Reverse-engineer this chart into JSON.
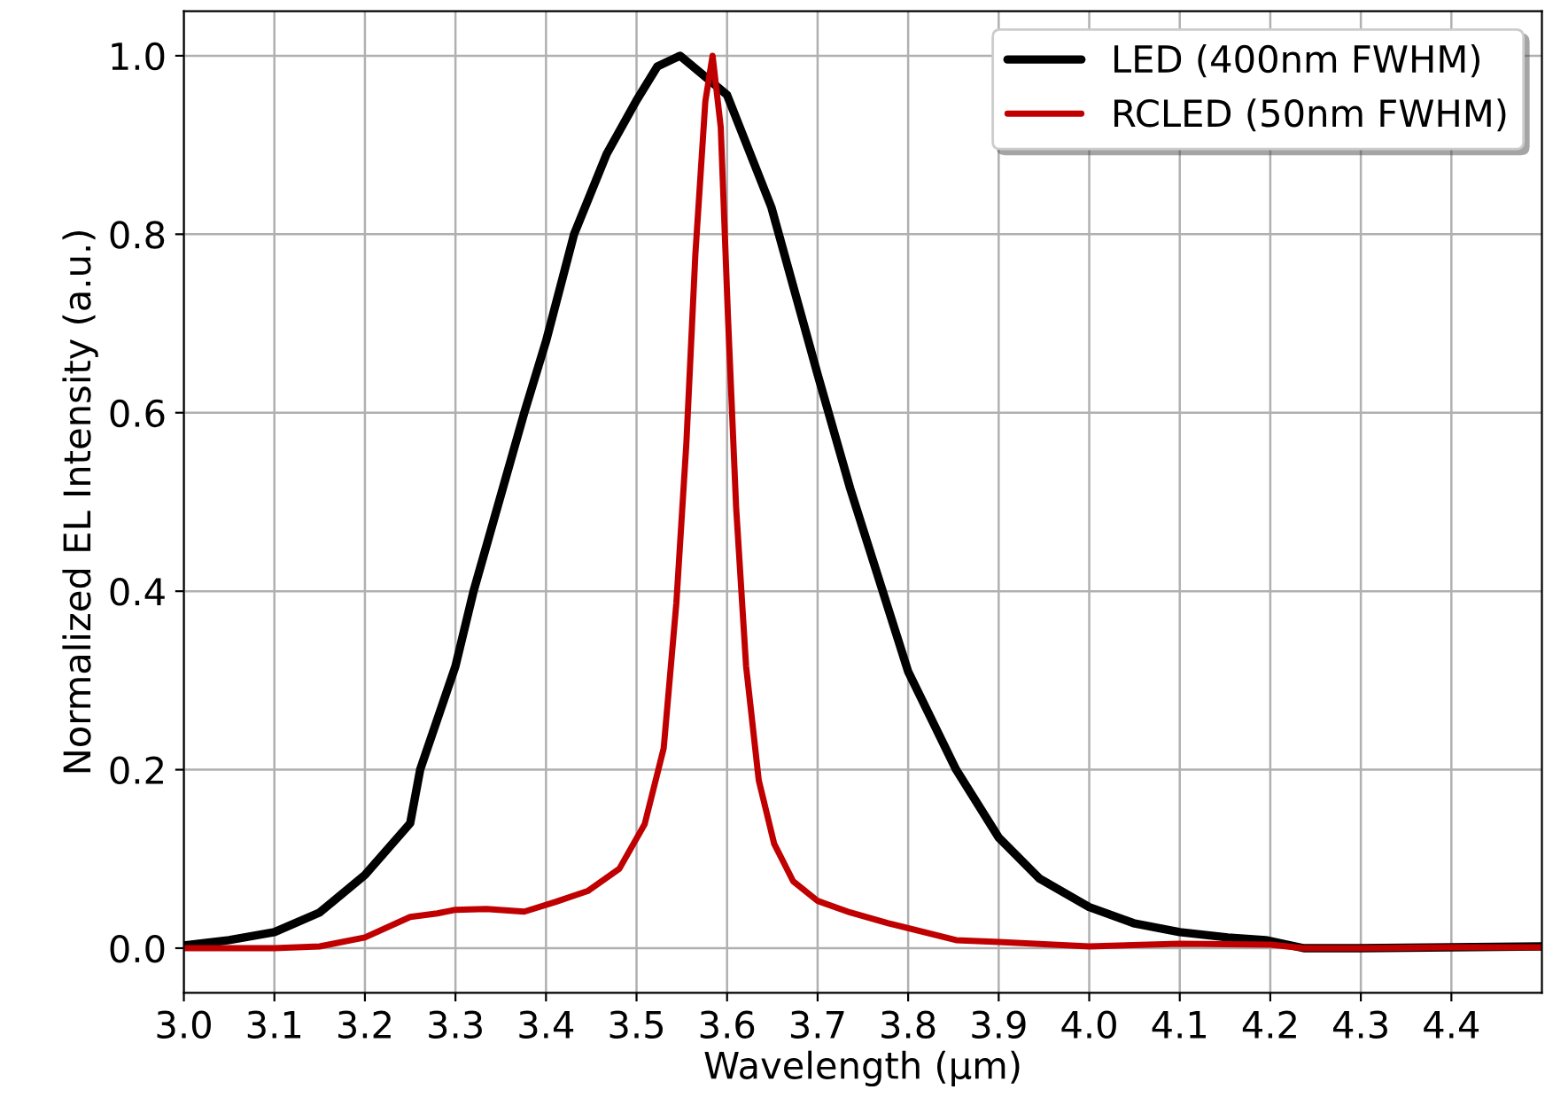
{
  "chart_data": {
    "type": "line",
    "xlabel": "Wavelength (μm)",
    "ylabel": "Normalized EL Intensity (a.u.)",
    "xlim": [
      3.0,
      4.5
    ],
    "ylim": [
      -0.05,
      1.05
    ],
    "xticks": [
      {
        "value": 3.0,
        "label": "3.0"
      },
      {
        "value": 3.1,
        "label": "3.1"
      },
      {
        "value": 3.2,
        "label": "3.2"
      },
      {
        "value": 3.3,
        "label": "3.3"
      },
      {
        "value": 3.4,
        "label": "3.4"
      },
      {
        "value": 3.5,
        "label": "3.5"
      },
      {
        "value": 3.6,
        "label": "3.6"
      },
      {
        "value": 3.7,
        "label": "3.7"
      },
      {
        "value": 3.8,
        "label": "3.8"
      },
      {
        "value": 3.9,
        "label": "3.9"
      },
      {
        "value": 4.0,
        "label": "4.0"
      },
      {
        "value": 4.1,
        "label": "4.1"
      },
      {
        "value": 4.2,
        "label": "4.2"
      },
      {
        "value": 4.3,
        "label": "4.3"
      },
      {
        "value": 4.4,
        "label": "4.4"
      }
    ],
    "yticks": [
      {
        "value": 0,
        "label": "0.0"
      },
      {
        "value": 0.2,
        "label": "0.2"
      },
      {
        "value": 0.4,
        "label": "0.4"
      },
      {
        "value": 0.6,
        "label": "0.6"
      },
      {
        "value": 0.8,
        "label": "0.8"
      },
      {
        "value": 1.0,
        "label": "1.0"
      }
    ],
    "grid": true,
    "legend": "top right",
    "marker": "none",
    "line_style": "solid",
    "series": [
      {
        "name": "LED (400nm FWHM)",
        "color": "#000000",
        "x": [
          3.0,
          3.05,
          3.1,
          3.15,
          3.2,
          3.25,
          3.261,
          3.3,
          3.32,
          3.376,
          3.4,
          3.431,
          3.467,
          3.5,
          3.523,
          3.548,
          3.6,
          3.649,
          3.7,
          3.736,
          3.8,
          3.853,
          3.9,
          3.945,
          4.0,
          4.049,
          4.1,
          4.153,
          4.195,
          4.237,
          4.3,
          4.4,
          4.5
        ],
        "values": [
          0.003,
          0.009,
          0.018,
          0.04,
          0.082,
          0.14,
          0.2,
          0.316,
          0.4,
          0.6,
          0.68,
          0.8,
          0.89,
          0.95,
          0.988,
          1.0,
          0.956,
          0.83,
          0.643,
          0.515,
          0.31,
          0.2,
          0.124,
          0.078,
          0.046,
          0.028,
          0.018,
          0.012,
          0.009,
          0.0,
          0.0,
          0.001,
          0.002
        ]
      },
      {
        "name": "RCLED (50nm FWHM)",
        "color": "#c00000",
        "x": [
          3.0,
          3.1,
          3.15,
          3.2,
          3.25,
          3.28,
          3.3,
          3.334,
          3.376,
          3.411,
          3.446,
          3.481,
          3.509,
          3.53,
          3.544,
          3.555,
          3.565,
          3.576,
          3.584,
          3.593,
          3.601,
          3.61,
          3.621,
          3.635,
          3.652,
          3.673,
          3.7,
          3.736,
          3.778,
          3.853,
          3.9,
          4.0,
          4.1,
          4.2,
          4.237,
          4.3,
          4.4,
          4.5
        ],
        "values": [
          0.0,
          0.0,
          0.002,
          0.012,
          0.035,
          0.039,
          0.043,
          0.044,
          0.041,
          0.052,
          0.064,
          0.089,
          0.139,
          0.224,
          0.387,
          0.565,
          0.778,
          0.949,
          1.0,
          0.92,
          0.707,
          0.494,
          0.316,
          0.188,
          0.117,
          0.075,
          0.053,
          0.04,
          0.028,
          0.009,
          0.007,
          0.002,
          0.005,
          0.004,
          0.0,
          0.0,
          0.001,
          0.001
        ]
      }
    ]
  }
}
